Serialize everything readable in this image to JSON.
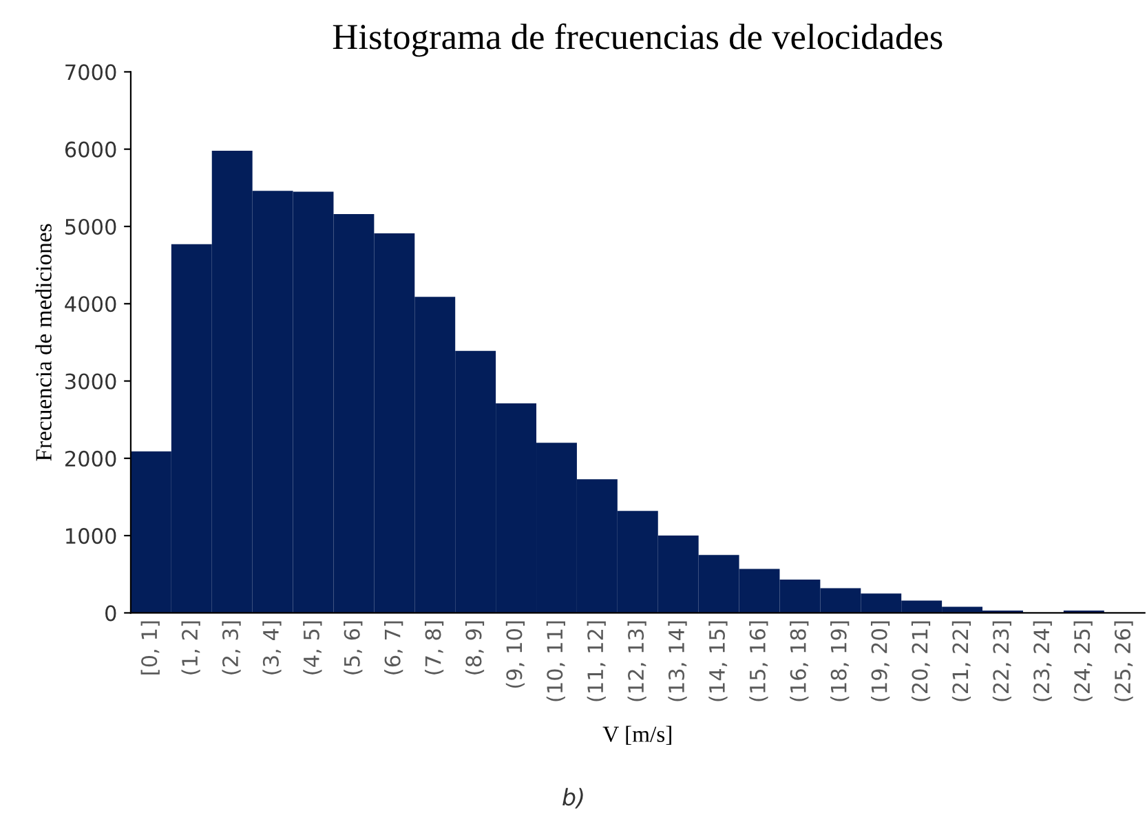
{
  "chart_data": {
    "type": "bar",
    "title": "Histograma de frecuencias de velocidades",
    "xlabel": "V [m/s]",
    "ylabel": "Frecuencia de mediciones",
    "annotations": [
      "b)"
    ],
    "categories": [
      "[0, 1]",
      "(1, 2]",
      "(2, 3]",
      "(3, 4]",
      "(4, 5]",
      "(5, 6]",
      "(6, 7]",
      "(7, 8]",
      "(8, 9]",
      "(9, 10]",
      "(10, 11]",
      "(11, 12]",
      "(12, 13]",
      "(13, 14]",
      "(14, 15]",
      "(15, 16]",
      "(16, 18]",
      "(18, 19]",
      "(19, 20]",
      "(20, 21]",
      "(21, 22]",
      "(22, 23]",
      "(23, 24]",
      "(24, 25]",
      "(25, 26]"
    ],
    "values": [
      2090,
      4770,
      5980,
      5460,
      5450,
      5160,
      4910,
      4090,
      3390,
      2710,
      2200,
      1730,
      1320,
      1000,
      750,
      570,
      430,
      320,
      250,
      160,
      80,
      30,
      0,
      30,
      0
    ],
    "color": "#031e5a",
    "ylim": [
      0,
      7000
    ],
    "yticks": [
      0,
      1000,
      2000,
      3000,
      4000,
      5000,
      6000,
      7000
    ],
    "grid": false,
    "legend": false
  }
}
